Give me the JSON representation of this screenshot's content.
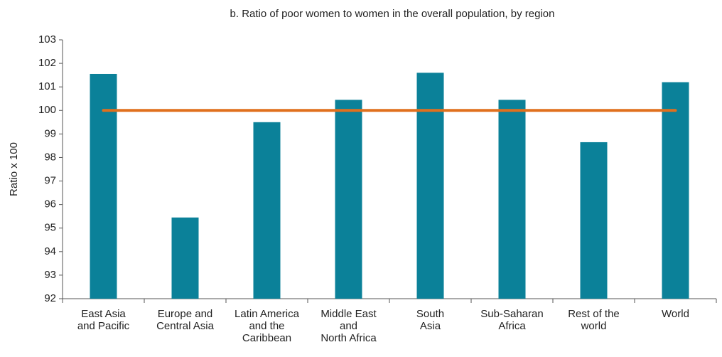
{
  "chart_data": {
    "type": "bar",
    "title": "b. Ratio of poor women to women in the overall population, by region",
    "y_label": "Ratio x 100",
    "categories": [
      "East Asia\nand Pacific",
      "Europe and\nCentral Asia",
      "Latin America\nand the\nCaribbean",
      "Middle East\nand\nNorth Africa",
      "South\nAsia",
      "Sub-Saharan\nAfrica",
      "Rest of the\nworld",
      "World"
    ],
    "series": [
      {
        "type": "bar",
        "color": "#0b8199",
        "values": [
          101.55,
          95.45,
          99.5,
          100.45,
          101.6,
          100.45,
          98.65,
          101.2
        ]
      },
      {
        "type": "line",
        "color": "#e0701e",
        "values": [
          100,
          100,
          100,
          100,
          100,
          100,
          100,
          100
        ]
      }
    ],
    "ylim": [
      92,
      103
    ],
    "yticks": [
      92,
      93,
      94,
      95,
      96,
      97,
      98,
      99,
      100,
      101,
      102,
      103
    ]
  }
}
